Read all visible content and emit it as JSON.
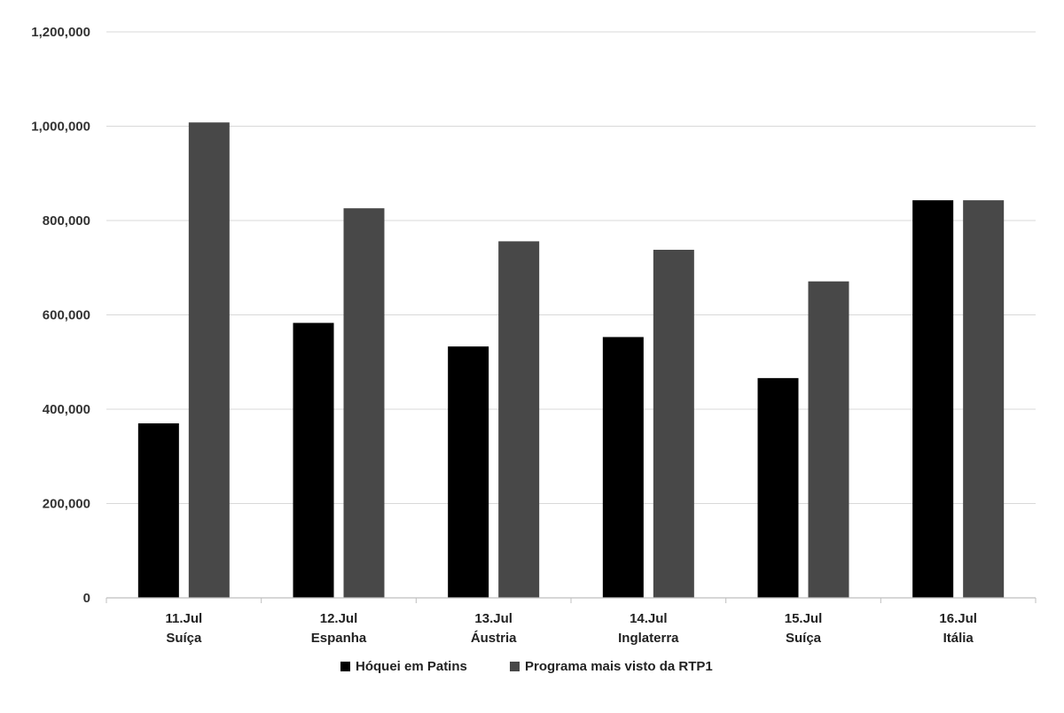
{
  "chart_data": {
    "type": "bar",
    "title": "",
    "xlabel": "",
    "ylabel": "",
    "ylim": [
      0,
      1200000
    ],
    "yticks": [
      0,
      200000,
      400000,
      600000,
      800000,
      1000000,
      1200000
    ],
    "ytick_labels": [
      "0",
      "200,000",
      "400,000",
      "600,000",
      "800,000",
      "1,000,000",
      "1,200,000"
    ],
    "grid": true,
    "legend_position": "bottom",
    "categories": [
      {
        "line1": "11.Jul",
        "line2": "Suíça"
      },
      {
        "line1": "12.Jul",
        "line2": "Espanha"
      },
      {
        "line1": "13.Jul",
        "line2": "Áustria"
      },
      {
        "line1": "14.Jul",
        "line2": "Inglaterra"
      },
      {
        "line1": "15.Jul",
        "line2": "Suíça"
      },
      {
        "line1": "16.Jul",
        "line2": "Itália"
      }
    ],
    "series": [
      {
        "name": "Hóquei em Patins",
        "color": "#000000",
        "values": [
          370000,
          583000,
          533000,
          553000,
          466000,
          843000
        ]
      },
      {
        "name": "Programa mais visto da RTP1",
        "color": "#484848",
        "values": [
          1008000,
          826000,
          756000,
          738000,
          671000,
          843000
        ]
      }
    ]
  }
}
